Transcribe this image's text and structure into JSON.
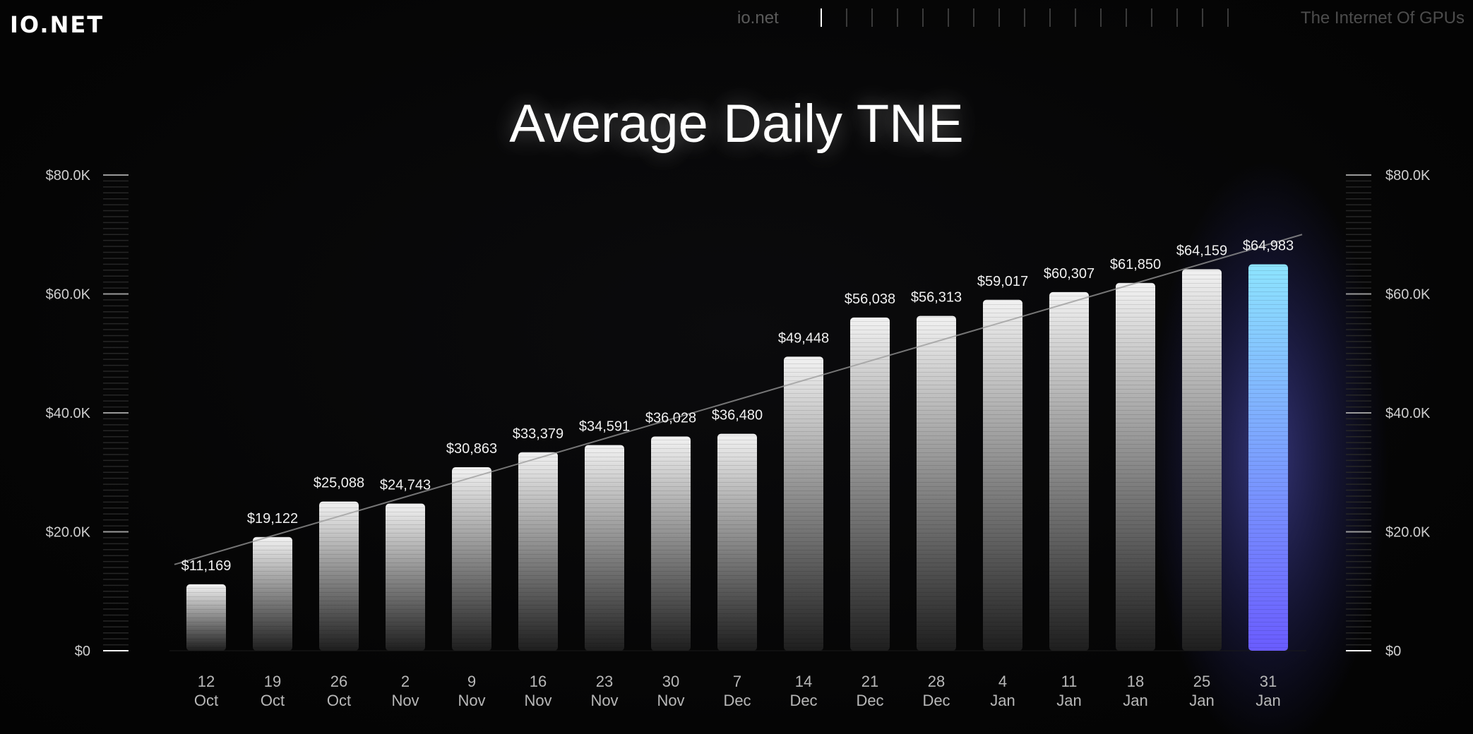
{
  "header": {
    "logo": "IO.NET",
    "nav_left": "io.net",
    "nav_right": "The Internet Of GPUs",
    "nav_tick_count": 17,
    "nav_active_index": 0
  },
  "colors": {
    "background": "#050505",
    "bar_top": "#f2f2f2",
    "bar_bottom": "#1e1e1e",
    "highlight_top": "#8de4ff",
    "highlight_bottom": "#6a5cff",
    "trend_line": "#9a9a9a"
  },
  "chart_data": {
    "type": "bar",
    "title": "Average Daily TNE",
    "xlabel": "",
    "ylabel": "",
    "ylim": [
      0,
      80000
    ],
    "y_ticks": [
      {
        "value": 0,
        "label": "$0"
      },
      {
        "value": 20000,
        "label": "$20.0K"
      },
      {
        "value": 40000,
        "label": "$40.0K"
      },
      {
        "value": 60000,
        "label": "$60.0K"
      },
      {
        "value": 80000,
        "label": "$80.0K"
      }
    ],
    "categories": [
      {
        "day": "12",
        "month": "Oct"
      },
      {
        "day": "19",
        "month": "Oct"
      },
      {
        "day": "26",
        "month": "Oct"
      },
      {
        "day": "2",
        "month": "Nov"
      },
      {
        "day": "9",
        "month": "Nov"
      },
      {
        "day": "16",
        "month": "Nov"
      },
      {
        "day": "23",
        "month": "Nov"
      },
      {
        "day": "30",
        "month": "Nov"
      },
      {
        "day": "7",
        "month": "Dec"
      },
      {
        "day": "14",
        "month": "Dec"
      },
      {
        "day": "21",
        "month": "Dec"
      },
      {
        "day": "28",
        "month": "Dec"
      },
      {
        "day": "4",
        "month": "Jan"
      },
      {
        "day": "11",
        "month": "Jan"
      },
      {
        "day": "18",
        "month": "Jan"
      },
      {
        "day": "25",
        "month": "Jan"
      },
      {
        "day": "31",
        "month": "Jan"
      }
    ],
    "values": [
      11169,
      19122,
      25088,
      24743,
      30863,
      33379,
      34591,
      36028,
      36480,
      49448,
      56038,
      56313,
      59017,
      60307,
      61850,
      64159,
      64983
    ],
    "value_labels": [
      "$11,169",
      "$19,122",
      "$25,088",
      "$24,743",
      "$30,863",
      "$33,379",
      "$34,591",
      "$36,028",
      "$36,480",
      "$49,448",
      "$56,038",
      "$56,313",
      "$59,017",
      "$60,307",
      "$61,850",
      "$64,159",
      "$64,983"
    ],
    "highlight_index": 16,
    "trend_line": {
      "start_value": 14500,
      "end_value": 70000
    },
    "grid": false,
    "legend": "none"
  }
}
